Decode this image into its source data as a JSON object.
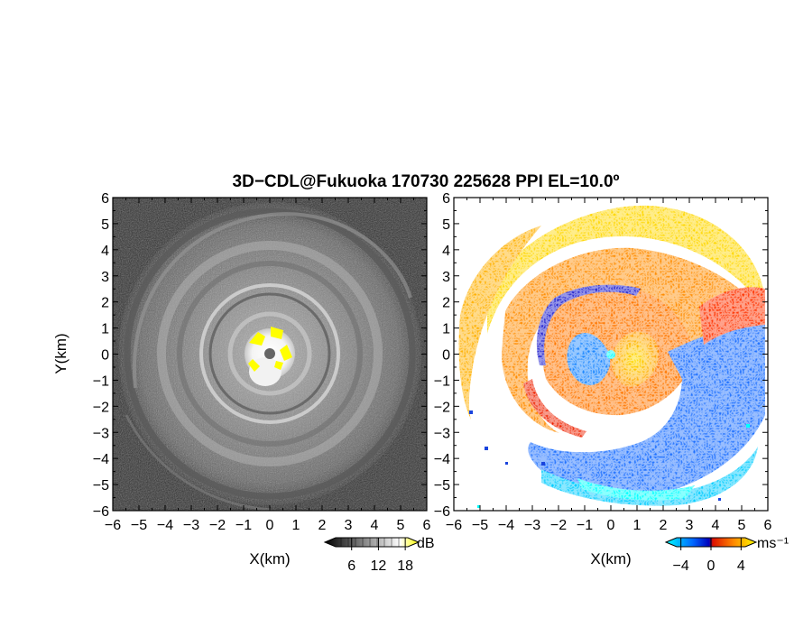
{
  "title": "3D−CDL@Fukuoka 170730 225628 PPI EL=10.0º",
  "chart_data": [
    {
      "type": "heatmap",
      "panel": "reflectivity",
      "xlabel": "X(km)",
      "ylabel": "Y(km)",
      "xlim": [
        -6,
        6
      ],
      "ylim": [
        -6,
        6
      ],
      "x_ticks": [
        "−6",
        "−5",
        "−4",
        "−3",
        "−2",
        "−1",
        "0",
        "1",
        "2",
        "3",
        "4",
        "5",
        "6"
      ],
      "y_ticks": [
        "−6",
        "−5",
        "−4",
        "−3",
        "−2",
        "−1",
        "0",
        "1",
        "2",
        "3",
        "4",
        "5",
        "6"
      ],
      "colorbar": {
        "unit": "dB",
        "tick_labels": [
          "6",
          "12",
          "18"
        ],
        "tick_values": [
          6,
          12,
          18
        ],
        "range": [
          0,
          21
        ],
        "colors": [
          "#000000",
          "#ffffff",
          "#ffff00"
        ]
      },
      "features": {
        "background": "#333333",
        "rings_km": [
          1.5,
          2.6,
          3.8,
          5.2
        ],
        "core_radius_km": 0.75,
        "core_color": "#ffffff",
        "highlight_color": "#ffff00",
        "center_dot_color": "#666666"
      }
    },
    {
      "type": "heatmap",
      "panel": "doppler-velocity",
      "xlabel": "X(km)",
      "xlim": [
        -6,
        6
      ],
      "ylim": [
        -6,
        6
      ],
      "x_ticks": [
        "−6",
        "−5",
        "−4",
        "−3",
        "−2",
        "−1",
        "0",
        "1",
        "2",
        "3",
        "4",
        "5",
        "6"
      ],
      "y_ticks": [
        "−6",
        "−5",
        "−4",
        "−3",
        "−2",
        "−1",
        "0",
        "1",
        "2",
        "3",
        "4",
        "5",
        "6"
      ],
      "colorbar": {
        "unit": "ms⁻¹",
        "tick_labels": [
          "−4",
          "0",
          "4"
        ],
        "tick_values": [
          -4,
          0,
          4
        ],
        "range": [
          -6,
          6
        ],
        "colors": [
          "#00ffff",
          "#0055ff",
          "#0000cc",
          "#ff2200",
          "#ff9900",
          "#ffff00"
        ]
      },
      "features": {
        "negative_color": "#1e90ff",
        "positive_color": "#ff8c00",
        "spiral_arm_color": "#ffd700",
        "inner_ring_color": "#ff4500"
      }
    }
  ]
}
